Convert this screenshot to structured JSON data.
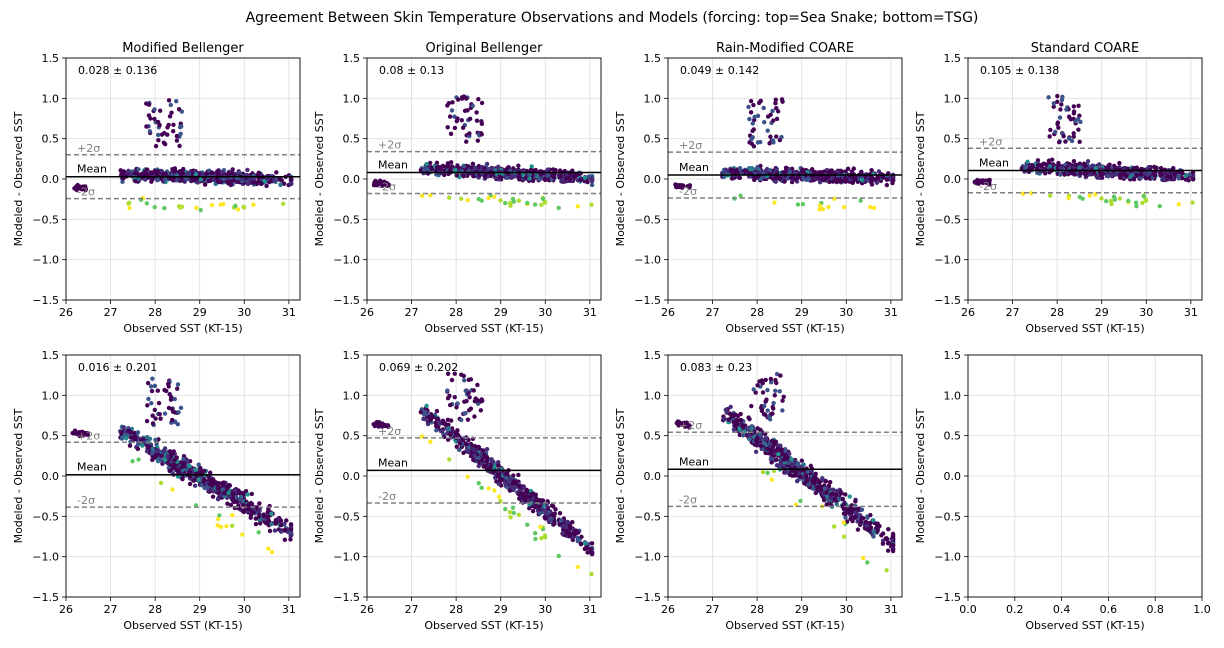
{
  "figure": {
    "title": "Agreement Between Skin Temperature Observations and Models (forcing: top=Sea Snake; bottom=TSG)"
  },
  "colors": {
    "point_palette": [
      "#440154",
      "#472c7a",
      "#3b528b",
      "#2c728e",
      "#21918c",
      "#28ae80",
      "#5ec962",
      "#addc30",
      "#fde725"
    ],
    "mean_line": "#000000",
    "sigma_line": "#808080",
    "grid": "#dddddd"
  },
  "chart_data": [
    {
      "type": "scatter",
      "row": 0,
      "col": 0,
      "title": "Modified Bellenger",
      "xlabel": "Observed SST (KT-15)",
      "ylabel": "Modeled - Observed SST",
      "xlim": [
        26,
        31.25
      ],
      "ylim": [
        -1.5,
        1.5
      ],
      "xticks": [
        "26",
        "27",
        "28",
        "29",
        "30",
        "31"
      ],
      "yticks": [
        "1.5",
        "1.0",
        "0.5",
        "0.0",
        "−0.5",
        "−1.0",
        "−1.5"
      ],
      "stat_text": "0.028 ± 0.136",
      "mean": 0.028,
      "plus2sigma": 0.3,
      "minus2sigma": -0.244,
      "labels": {
        "plus": "+2σ",
        "mean": "Mean",
        "minus": "-2σ"
      },
      "spread": 0.07,
      "slope": -0.02,
      "grid": true
    },
    {
      "type": "scatter",
      "row": 0,
      "col": 1,
      "title": "Original Bellenger",
      "xlabel": "Observed SST (KT-15)",
      "ylabel": "Modeled - Observed SST",
      "xlim": [
        26,
        31.25
      ],
      "ylim": [
        -1.5,
        1.5
      ],
      "xticks": [
        "26",
        "27",
        "28",
        "29",
        "30",
        "31"
      ],
      "yticks": [
        "1.5",
        "1.0",
        "0.5",
        "0.0",
        "−0.5",
        "−1.0",
        "−1.5"
      ],
      "stat_text": "0.08 ± 0.13",
      "mean": 0.08,
      "plus2sigma": 0.34,
      "minus2sigma": -0.18,
      "labels": {
        "plus": "+2σ",
        "mean": "Mean",
        "minus": "-2σ"
      },
      "spread": 0.065,
      "slope": -0.03,
      "grid": true
    },
    {
      "type": "scatter",
      "row": 0,
      "col": 2,
      "title": "Rain-Modified COARE",
      "xlabel": "Observed SST (KT-15)",
      "ylabel": "Modeled - Observed SST",
      "xlim": [
        26,
        31.25
      ],
      "ylim": [
        -1.5,
        1.5
      ],
      "xticks": [
        "26",
        "27",
        "28",
        "29",
        "30",
        "31"
      ],
      "yticks": [
        "1.5",
        "1.0",
        "0.5",
        "0.0",
        "−0.5",
        "−1.0",
        "−1.5"
      ],
      "stat_text": "0.049 ± 0.142",
      "mean": 0.049,
      "plus2sigma": 0.333,
      "minus2sigma": -0.235,
      "labels": {
        "plus": "+2σ",
        "mean": "Mean",
        "minus": "-2σ"
      },
      "spread": 0.07,
      "slope": -0.02,
      "grid": true
    },
    {
      "type": "scatter",
      "row": 0,
      "col": 3,
      "title": "Standard COARE",
      "xlabel": "Observed SST (KT-15)",
      "ylabel": "Modeled - Observed SST",
      "xlim": [
        26,
        31.25
      ],
      "ylim": [
        -1.5,
        1.5
      ],
      "xticks": [
        "26",
        "27",
        "28",
        "29",
        "30",
        "31"
      ],
      "yticks": [
        "1.5",
        "1.0",
        "0.5",
        "0.0",
        "−0.5",
        "−1.0",
        "−1.5"
      ],
      "stat_text": "0.105 ± 0.138",
      "mean": 0.105,
      "plus2sigma": 0.381,
      "minus2sigma": -0.171,
      "labels": {
        "plus": "+2σ",
        "mean": "Mean",
        "minus": "-2σ"
      },
      "spread": 0.07,
      "slope": -0.03,
      "grid": true
    },
    {
      "type": "scatter",
      "row": 1,
      "col": 0,
      "title": "",
      "xlabel": "Observed SST (KT-15)",
      "ylabel": "Modeled - Observed SST",
      "xlim": [
        26,
        31.25
      ],
      "ylim": [
        -1.5,
        1.5
      ],
      "xticks": [
        "26",
        "27",
        "28",
        "29",
        "30",
        "31"
      ],
      "yticks": [
        "1.5",
        "1.0",
        "0.5",
        "0.0",
        "−0.5",
        "−1.0",
        "−1.5"
      ],
      "stat_text": "0.016 ± 0.201",
      "mean": 0.016,
      "plus2sigma": 0.418,
      "minus2sigma": -0.386,
      "labels": {
        "plus": "+2σ",
        "mean": "Mean",
        "minus": "-2σ"
      },
      "spread": 0.12,
      "slope": -0.33,
      "grid": true
    },
    {
      "type": "scatter",
      "row": 1,
      "col": 1,
      "title": "",
      "xlabel": "Observed SST (KT-15)",
      "ylabel": "Modeled - Observed SST",
      "xlim": [
        26,
        31.25
      ],
      "ylim": [
        -1.5,
        1.5
      ],
      "xticks": [
        "26",
        "27",
        "28",
        "29",
        "30",
        "31"
      ],
      "yticks": [
        "1.5",
        "1.0",
        "0.5",
        "0.0",
        "−0.5",
        "−1.0",
        "−1.5"
      ],
      "stat_text": "0.069 ± 0.202",
      "mean": 0.069,
      "plus2sigma": 0.473,
      "minus2sigma": -0.335,
      "labels": {
        "plus": "+2σ",
        "mean": "Mean",
        "minus": "-2σ"
      },
      "spread": 0.11,
      "slope": -0.45,
      "grid": true
    },
    {
      "type": "scatter",
      "row": 1,
      "col": 2,
      "title": "",
      "xlabel": "Observed SST (KT-15)",
      "ylabel": "Modeled - Observed SST",
      "xlim": [
        26,
        31.25
      ],
      "ylim": [
        -1.5,
        1.5
      ],
      "xticks": [
        "26",
        "27",
        "28",
        "29",
        "30",
        "31"
      ],
      "yticks": [
        "1.5",
        "1.0",
        "0.5",
        "0.0",
        "−0.5",
        "−1.0",
        "−1.5"
      ],
      "stat_text": "0.083 ± 0.23",
      "mean": 0.083,
      "plus2sigma": 0.543,
      "minus2sigma": -0.377,
      "labels": {
        "plus": "+2σ",
        "mean": "Mean",
        "minus": "-2σ"
      },
      "spread": 0.13,
      "slope": -0.42,
      "grid": true
    },
    {
      "type": "scatter",
      "row": 1,
      "col": 3,
      "title": "",
      "xlabel": "Observed SST (KT-15)",
      "ylabel": "Modeled - Observed SST",
      "xlim": [
        0,
        1
      ],
      "ylim": [
        -1.5,
        1.5
      ],
      "xticks": [
        "0.0",
        "0.2",
        "0.4",
        "0.6",
        "0.8",
        "1.0"
      ],
      "yticks": [
        "1.5",
        "1.0",
        "0.5",
        "0.0",
        "−0.5",
        "−1.0",
        "−1.5"
      ],
      "stat_text": "",
      "empty": true,
      "grid": true
    }
  ]
}
